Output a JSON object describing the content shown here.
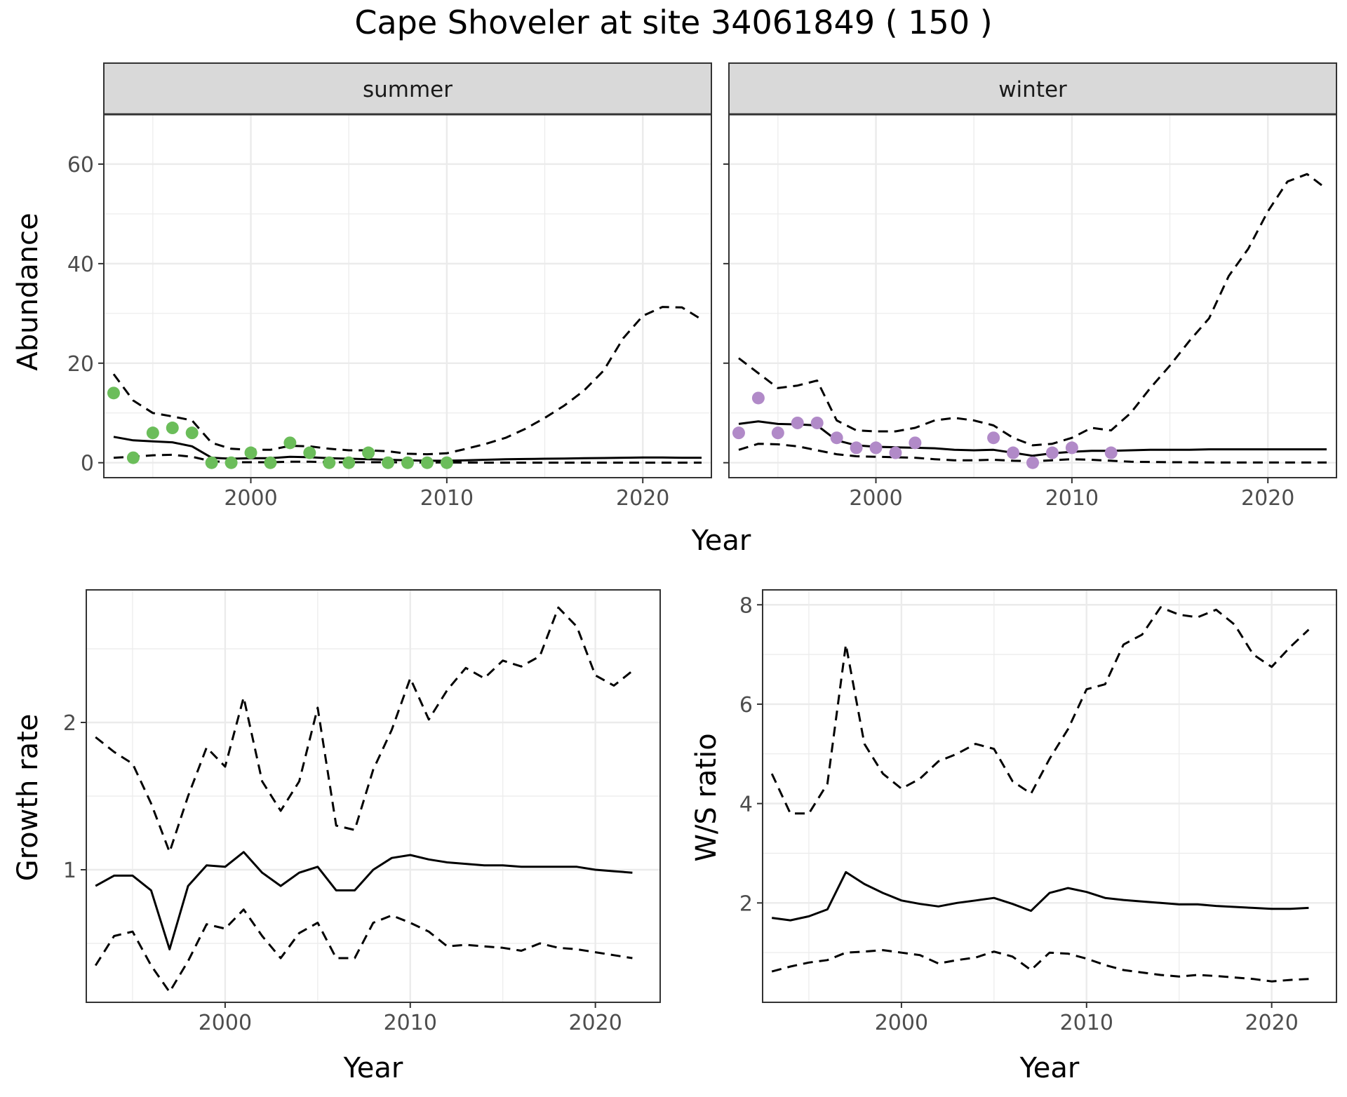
{
  "title": "Cape Shoveler at site 34061849 ( 150 )",
  "colors": {
    "summer_points": "#6BBD5A",
    "winter_points": "#B18AC8",
    "line": "#000000",
    "strip_fill": "#D9D9D9",
    "grid": "#EBEBEB"
  },
  "chart_data": [
    {
      "type": "line",
      "facet": "summer",
      "strip_label": "summer",
      "xlabel": "Year",
      "ylabel": "Abundance",
      "xlim": [
        1992.5,
        2023.5
      ],
      "ylim": [
        -3,
        70
      ],
      "xticks": [
        2000,
        2010,
        2020
      ],
      "yticks": [
        0,
        20,
        40,
        60
      ],
      "grid": true,
      "observed_points": {
        "x": [
          1993,
          1994,
          1995,
          1996,
          1997,
          1998,
          1999,
          2000,
          2001,
          2002,
          2003,
          2004,
          2005,
          2006,
          2007,
          2008,
          2009,
          2010
        ],
        "y": [
          14,
          1,
          6,
          7,
          6,
          0,
          0,
          2,
          0,
          4,
          2,
          0,
          0,
          2,
          0,
          0,
          0,
          0
        ]
      },
      "series": [
        {
          "style": "solid",
          "x": [
            1993,
            1994,
            1995,
            1996,
            1997,
            1998,
            1999,
            2000,
            2001,
            2002,
            2003,
            2004,
            2005,
            2006,
            2007,
            2008,
            2009,
            2010,
            2011,
            2012,
            2013,
            2014,
            2015,
            2016,
            2017,
            2018,
            2019,
            2020,
            2021,
            2022,
            2023
          ],
          "y": [
            5.2,
            4.5,
            4.3,
            4.1,
            3.3,
            1.0,
            0.8,
            0.9,
            0.9,
            1.2,
            1.1,
            0.9,
            0.8,
            0.7,
            0.6,
            0.5,
            0.4,
            0.4,
            0.5,
            0.6,
            0.7,
            0.75,
            0.8,
            0.85,
            0.9,
            0.95,
            1.0,
            1.05,
            1.05,
            1.0,
            1.0
          ]
        },
        {
          "style": "dashed",
          "x": [
            1993,
            1994,
            1995,
            1996,
            1997,
            1998,
            1999,
            2000,
            2001,
            2002,
            2003,
            2004,
            2005,
            2006,
            2007,
            2008,
            2009,
            2010,
            2011,
            2012,
            2013,
            2014,
            2015,
            2016,
            2017,
            2018,
            2019,
            2020,
            2021,
            2022,
            2023
          ],
          "y": [
            17.8,
            12.5,
            10.0,
            9.3,
            8.5,
            4.0,
            2.8,
            2.6,
            2.6,
            3.4,
            3.3,
            2.8,
            2.5,
            2.5,
            2.3,
            1.8,
            1.7,
            1.9,
            2.8,
            3.8,
            5.0,
            6.8,
            9.0,
            11.5,
            14.5,
            18.5,
            25.0,
            29.5,
            31.3,
            31.2,
            28.8
          ]
        },
        {
          "style": "dashed",
          "x": [
            1993,
            1994,
            1995,
            1996,
            1997,
            1998,
            1999,
            2000,
            2001,
            2002,
            2003,
            2004,
            2005,
            2006,
            2007,
            2008,
            2009,
            2010,
            2011,
            2012,
            2013,
            2014,
            2015,
            2016,
            2017,
            2018,
            2019,
            2020,
            2021,
            2022,
            2023
          ],
          "y": [
            1.0,
            1.2,
            1.5,
            1.6,
            1.2,
            0.3,
            0.1,
            0.1,
            0.1,
            0.2,
            0.2,
            0.1,
            0.1,
            0.1,
            0.1,
            0.05,
            0.05,
            0.05,
            0.03,
            0.02,
            0.02,
            0.02,
            0.02,
            0.02,
            0.02,
            0.02,
            0.02,
            0.02,
            0.02,
            0.02,
            0.02
          ]
        }
      ]
    },
    {
      "type": "line",
      "facet": "winter",
      "strip_label": "winter",
      "xlabel": "Year",
      "ylabel": "Abundance",
      "xlim": [
        1992.5,
        2023.5
      ],
      "ylim": [
        -3,
        70
      ],
      "xticks": [
        2000,
        2010,
        2020
      ],
      "yticks": [
        0,
        20,
        40,
        60
      ],
      "grid": true,
      "observed_points": {
        "x": [
          1993,
          1994,
          1995,
          1996,
          1997,
          1998,
          1999,
          2000,
          2001,
          2002,
          2006,
          2007,
          2008,
          2009,
          2010,
          2012
        ],
        "y": [
          6,
          13,
          6,
          8,
          8,
          5,
          3,
          3,
          2,
          4,
          5,
          2,
          0,
          2,
          3,
          2
        ]
      },
      "series": [
        {
          "style": "solid",
          "x": [
            1993,
            1994,
            1995,
            1996,
            1997,
            1998,
            1999,
            2000,
            2001,
            2002,
            2003,
            2004,
            2005,
            2006,
            2007,
            2008,
            2009,
            2010,
            2011,
            2012,
            2013,
            2014,
            2015,
            2016,
            2017,
            2018,
            2019,
            2020,
            2021,
            2022,
            2023
          ],
          "y": [
            7.8,
            8.3,
            7.8,
            7.7,
            7.5,
            4.5,
            3.5,
            3.2,
            3.1,
            3.0,
            2.9,
            2.6,
            2.5,
            2.6,
            2.0,
            1.4,
            1.9,
            2.2,
            2.4,
            2.4,
            2.5,
            2.6,
            2.6,
            2.6,
            2.7,
            2.7,
            2.7,
            2.7,
            2.7,
            2.7,
            2.7
          ]
        },
        {
          "style": "dashed",
          "x": [
            1993,
            1994,
            1995,
            1996,
            1997,
            1998,
            1999,
            2000,
            2001,
            2002,
            2003,
            2004,
            2005,
            2006,
            2007,
            2008,
            2009,
            2010,
            2011,
            2012,
            2013,
            2014,
            2015,
            2016,
            2017,
            2018,
            2019,
            2020,
            2021,
            2022,
            2023
          ],
          "y": [
            21.0,
            18.0,
            15.0,
            15.5,
            16.5,
            8.5,
            6.5,
            6.3,
            6.3,
            7.0,
            8.5,
            9.0,
            8.5,
            7.5,
            5.0,
            3.5,
            3.8,
            5.0,
            7.0,
            6.5,
            10.0,
            15.0,
            19.5,
            24.5,
            29.0,
            37.5,
            43.0,
            50.5,
            56.5,
            58.0,
            55.0
          ]
        },
        {
          "style": "dashed",
          "x": [
            1993,
            1994,
            1995,
            1996,
            1997,
            1998,
            1999,
            2000,
            2001,
            2002,
            2003,
            2004,
            2005,
            2006,
            2007,
            2008,
            2009,
            2010,
            2011,
            2012,
            2013,
            2014,
            2015,
            2016,
            2017,
            2018,
            2019,
            2020,
            2021,
            2022,
            2023
          ],
          "y": [
            2.6,
            3.8,
            3.7,
            3.3,
            2.5,
            1.7,
            1.3,
            1.2,
            1.1,
            1.0,
            0.7,
            0.5,
            0.5,
            0.6,
            0.4,
            0.3,
            0.5,
            0.7,
            0.6,
            0.4,
            0.2,
            0.15,
            0.1,
            0.08,
            0.06,
            0.05,
            0.05,
            0.05,
            0.05,
            0.05,
            0.05
          ]
        }
      ]
    },
    {
      "type": "line",
      "xlabel": "Year",
      "ylabel": "Growth rate",
      "xlim": [
        1992.5,
        2023.5
      ],
      "ylim": [
        0.1,
        2.9
      ],
      "xticks": [
        2000,
        2010,
        2020
      ],
      "yticks": [
        1,
        2
      ],
      "grid": true,
      "series": [
        {
          "style": "solid",
          "x": [
            1993,
            1994,
            1995,
            1996,
            1997,
            1998,
            1999,
            2000,
            2001,
            2002,
            2003,
            2004,
            2005,
            2006,
            2007,
            2008,
            2009,
            2010,
            2011,
            2012,
            2013,
            2014,
            2015,
            2016,
            2017,
            2018,
            2019,
            2020,
            2021,
            2022
          ],
          "y": [
            0.89,
            0.96,
            0.96,
            0.86,
            0.46,
            0.89,
            1.03,
            1.02,
            1.12,
            0.98,
            0.89,
            0.98,
            1.02,
            0.86,
            0.86,
            1.0,
            1.08,
            1.1,
            1.07,
            1.05,
            1.04,
            1.03,
            1.03,
            1.02,
            1.02,
            1.02,
            1.02,
            1.0,
            0.99,
            0.98
          ]
        },
        {
          "style": "dashed",
          "x": [
            1993,
            1994,
            1995,
            1996,
            1997,
            1998,
            1999,
            2000,
            2001,
            2002,
            2003,
            2004,
            2005,
            2006,
            2007,
            2008,
            2009,
            2010,
            2011,
            2012,
            2013,
            2014,
            2015,
            2016,
            2017,
            2018,
            2019,
            2020,
            2021,
            2022
          ],
          "y": [
            1.9,
            1.8,
            1.72,
            1.45,
            1.12,
            1.5,
            1.83,
            1.7,
            2.17,
            1.6,
            1.4,
            1.6,
            2.1,
            1.3,
            1.27,
            1.68,
            1.95,
            2.3,
            2.02,
            2.22,
            2.37,
            2.3,
            2.42,
            2.38,
            2.45,
            2.78,
            2.65,
            2.32,
            2.25,
            2.35
          ]
        },
        {
          "style": "dashed",
          "x": [
            1993,
            1994,
            1995,
            1996,
            1997,
            1998,
            1999,
            2000,
            2001,
            2002,
            2003,
            2004,
            2005,
            2006,
            2007,
            2008,
            2009,
            2010,
            2011,
            2012,
            2013,
            2014,
            2015,
            2016,
            2017,
            2018,
            2019,
            2020,
            2021,
            2022
          ],
          "y": [
            0.35,
            0.55,
            0.58,
            0.35,
            0.17,
            0.38,
            0.63,
            0.6,
            0.73,
            0.55,
            0.4,
            0.57,
            0.64,
            0.4,
            0.4,
            0.64,
            0.69,
            0.64,
            0.58,
            0.48,
            0.49,
            0.48,
            0.47,
            0.45,
            0.5,
            0.47,
            0.46,
            0.44,
            0.42,
            0.4
          ]
        }
      ]
    },
    {
      "type": "line",
      "xlabel": "Year",
      "ylabel": "W/S ratio",
      "xlim": [
        1992.5,
        2023.5
      ],
      "ylim": [
        0.0,
        8.3
      ],
      "xticks": [
        2000,
        2010,
        2020
      ],
      "yticks": [
        2,
        4,
        6,
        8
      ],
      "grid": true,
      "series": [
        {
          "style": "solid",
          "x": [
            1993,
            1994,
            1995,
            1996,
            1997,
            1998,
            1999,
            2000,
            2001,
            2002,
            2003,
            2004,
            2005,
            2006,
            2007,
            2008,
            2009,
            2010,
            2011,
            2012,
            2013,
            2014,
            2015,
            2016,
            2017,
            2018,
            2019,
            2020,
            2021,
            2022
          ],
          "y": [
            1.7,
            1.65,
            1.73,
            1.87,
            2.62,
            2.38,
            2.2,
            2.05,
            1.98,
            1.93,
            2.0,
            2.05,
            2.1,
            1.98,
            1.84,
            2.2,
            2.3,
            2.22,
            2.1,
            2.06,
            2.03,
            2.0,
            1.97,
            1.97,
            1.94,
            1.92,
            1.9,
            1.88,
            1.88,
            1.9
          ]
        },
        {
          "style": "dashed",
          "x": [
            1993,
            1994,
            1995,
            1996,
            1997,
            1998,
            1999,
            2000,
            2001,
            2002,
            2003,
            2004,
            2005,
            2006,
            2007,
            2008,
            2009,
            2010,
            2011,
            2012,
            2013,
            2014,
            2015,
            2016,
            2017,
            2018,
            2019,
            2020,
            2021,
            2022
          ],
          "y": [
            4.6,
            3.8,
            3.8,
            4.4,
            7.2,
            5.2,
            4.6,
            4.3,
            4.5,
            4.85,
            5.0,
            5.2,
            5.1,
            4.45,
            4.2,
            4.9,
            5.5,
            6.3,
            6.4,
            7.2,
            7.4,
            7.95,
            7.8,
            7.75,
            7.9,
            7.6,
            7.0,
            6.75,
            7.15,
            7.5
          ]
        },
        {
          "style": "dashed",
          "x": [
            1993,
            1994,
            1995,
            1996,
            1997,
            1998,
            1999,
            2000,
            2001,
            2002,
            2003,
            2004,
            2005,
            2006,
            2007,
            2008,
            2009,
            2010,
            2011,
            2012,
            2013,
            2014,
            2015,
            2016,
            2017,
            2018,
            2019,
            2020,
            2021,
            2022
          ],
          "y": [
            0.62,
            0.72,
            0.8,
            0.85,
            1.0,
            1.02,
            1.05,
            1.0,
            0.95,
            0.78,
            0.85,
            0.9,
            1.02,
            0.92,
            0.65,
            1.0,
            0.98,
            0.88,
            0.75,
            0.65,
            0.6,
            0.55,
            0.52,
            0.55,
            0.53,
            0.5,
            0.47,
            0.42,
            0.45,
            0.47
          ]
        }
      ]
    }
  ]
}
